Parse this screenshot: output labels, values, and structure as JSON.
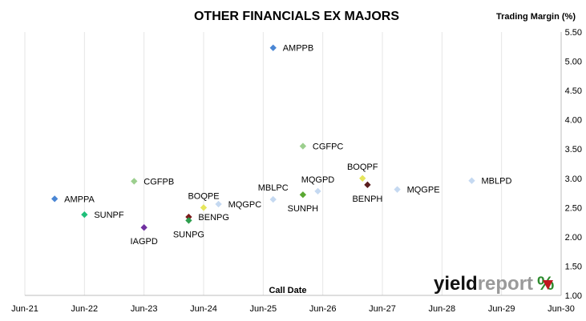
{
  "chart_data": {
    "type": "scatter",
    "title": "OTHER FINANCIALS EX MAJORS",
    "ylabel": "Trading Margin (%)",
    "xlabel": "Call Date",
    "x_ticks": [
      "Jun-21",
      "Jun-22",
      "Jun-23",
      "Jun-24",
      "Jun-25",
      "Jun-26",
      "Jun-27",
      "Jun-28",
      "Jun-29",
      "Jun-30"
    ],
    "xlim": [
      "2021-06",
      "2030-06"
    ],
    "y_ticks": [
      "1.00",
      "1.50",
      "2.00",
      "2.50",
      "3.00",
      "3.50",
      "4.00",
      "4.50",
      "5.00",
      "5.50"
    ],
    "ylim": [
      1.0,
      5.5
    ],
    "grid": "vertical",
    "points": [
      {
        "label": "AMPPA",
        "x": "2021-12",
        "y": 2.65,
        "color": "#4a86d4"
      },
      {
        "label": "SUNPF",
        "x": "2022-06",
        "y": 2.38,
        "color": "#1fbf7a"
      },
      {
        "label": "CGFPB",
        "x": "2023-04",
        "y": 2.95,
        "color": "#9ccf8e"
      },
      {
        "label": "IAGPD",
        "x": "2023-06",
        "y": 2.16,
        "color": "#7030a0"
      },
      {
        "label": "BOQPE",
        "x": "2024-06",
        "y": 2.5,
        "color": "#e6e65c"
      },
      {
        "label": "BENPG",
        "x": "2024-03",
        "y": 2.34,
        "color": "#7b1c1c"
      },
      {
        "label": "SUNPG",
        "x": "2024-03",
        "y": 2.28,
        "color": "#2e9e4e"
      },
      {
        "label": "MQGPC",
        "x": "2024-09",
        "y": 2.56,
        "color": "#c5d9f1"
      },
      {
        "label": "AMPPB",
        "x": "2025-08",
        "y": 5.23,
        "color": "#4a86d4"
      },
      {
        "label": "MBLPC",
        "x": "2025-08",
        "y": 2.64,
        "color": "#c5d9f1"
      },
      {
        "label": "CGFPC",
        "x": "2026-02",
        "y": 3.55,
        "color": "#9ccf8e"
      },
      {
        "label": "SUNPH",
        "x": "2026-02",
        "y": 2.72,
        "color": "#5aa832"
      },
      {
        "label": "MQGPD",
        "x": "2026-05",
        "y": 2.78,
        "color": "#c5d9f1"
      },
      {
        "label": "BOQPF",
        "x": "2027-02",
        "y": 3.0,
        "color": "#e6e65c"
      },
      {
        "label": "BENPH",
        "x": "2027-03",
        "y": 2.89,
        "color": "#5a1e1e"
      },
      {
        "label": "MQGPE",
        "x": "2027-09",
        "y": 2.81,
        "color": "#c5d9f1"
      },
      {
        "label": "MBLPD",
        "x": "2028-12",
        "y": 2.96,
        "color": "#c5d9f1"
      }
    ]
  },
  "brand": {
    "part1": "yield",
    "part2": "report",
    "symbol": "%"
  }
}
